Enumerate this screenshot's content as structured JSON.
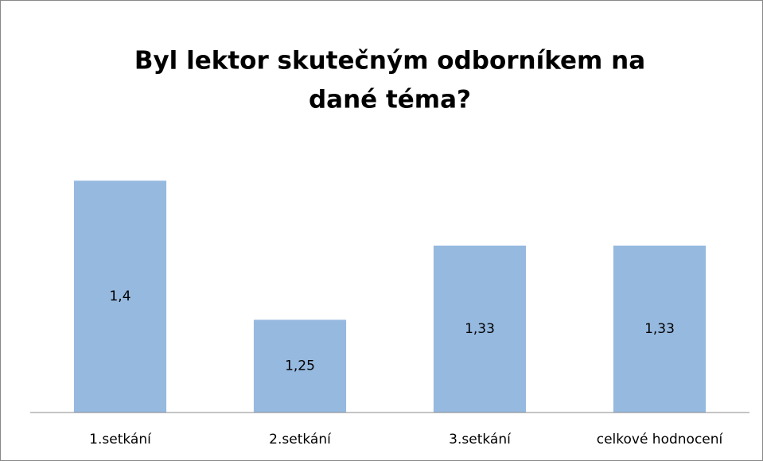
{
  "chart_data": {
    "type": "bar",
    "title": [
      "Byl  lektor skutečným odborníkem na",
      "dané téma?"
    ],
    "categories": [
      "1.setkání",
      "2.setkání",
      "3.setkání",
      "celkové hodnocení"
    ],
    "values": [
      1.4,
      1.25,
      1.33,
      1.33
    ],
    "value_labels": [
      "1,4",
      "1,25",
      "1,33",
      "1,33"
    ],
    "color": "#96b9df",
    "ylim": [
      1.15,
      1.45
    ]
  }
}
